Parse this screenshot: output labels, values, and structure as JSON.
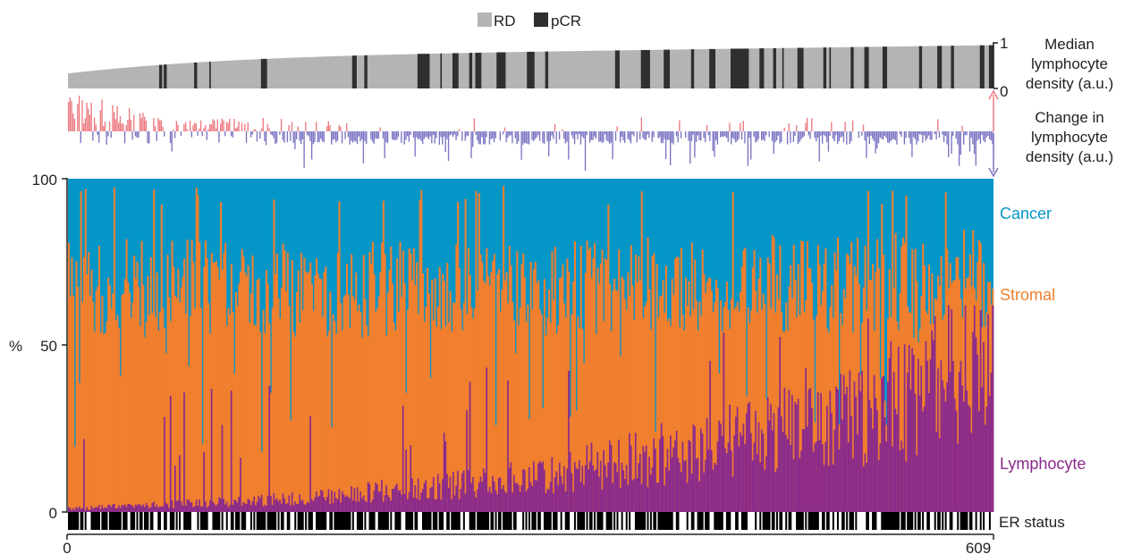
{
  "chart_data": {
    "type": "bar",
    "n_samples": 609,
    "x_ticks": [
      0,
      609
    ],
    "colors": {
      "RD": "#b4b4b4",
      "pCR": "#2f2f2f",
      "increase": "#ec7a80",
      "decrease": "#7a74c2",
      "cancer": "#0596c8",
      "stromal": "#f07f2e",
      "lymphocyte": "#8a2a8c",
      "er_positive": "#000000",
      "er_negative": "#ffffff"
    },
    "response_legend": [
      {
        "label": "RD",
        "color": "#b4b4b4"
      },
      {
        "label": "pCR",
        "color": "#2f2f2f"
      }
    ],
    "median_density": {
      "ylabel": "Median lymphocyte density (a.u.)",
      "ylabel_lines": [
        "Median",
        "lymphocyte",
        "density (a.u.)"
      ],
      "ylim": [
        0,
        1
      ],
      "y_tick_labels": [
        "1",
        "0"
      ],
      "start_value": 0.33,
      "end_value": 0.95,
      "pcr_runs": [
        [
          60,
          62
        ],
        [
          63,
          65
        ],
        [
          83,
          85
        ],
        [
          93,
          94
        ],
        [
          127,
          131
        ],
        [
          187,
          190
        ],
        [
          195,
          197
        ],
        [
          230,
          238
        ],
        [
          245,
          246
        ],
        [
          253,
          257
        ],
        [
          264,
          266
        ],
        [
          268,
          272
        ],
        [
          282,
          288
        ],
        [
          302,
          307
        ],
        [
          314,
          316
        ],
        [
          360,
          363
        ],
        [
          377,
          383
        ],
        [
          392,
          396
        ],
        [
          410,
          412
        ],
        [
          422,
          426
        ],
        [
          436,
          448
        ],
        [
          455,
          458
        ],
        [
          464,
          466
        ],
        [
          470,
          471
        ],
        [
          480,
          484
        ],
        [
          497,
          499
        ],
        [
          501,
          502
        ],
        [
          515,
          517
        ],
        [
          524,
          527
        ],
        [
          536,
          539
        ],
        [
          560,
          562
        ],
        [
          572,
          575
        ],
        [
          581,
          583
        ],
        [
          600,
          603
        ],
        [
          606,
          609
        ]
      ]
    },
    "density_change": {
      "ylabel": "Change in lymphocyte density (a.u.)",
      "ylabel_lines": [
        "Change in",
        "lymphocyte",
        "density (a.u.)"
      ],
      "note": "change values per sample are not printed; bars drawn approximately"
    },
    "composition": {
      "ylabel": "%",
      "ylim": [
        0,
        100
      ],
      "y_ticks": [
        0,
        50,
        100
      ],
      "series": [
        {
          "name": "Cancer",
          "label": "Cancer"
        },
        {
          "name": "Stromal",
          "label": "Stromal"
        },
        {
          "name": "Lymphocyte",
          "label": "Lymphocyte"
        }
      ],
      "trend": {
        "lymphocyte_pct": {
          "x": [
            0,
            150,
            300,
            450,
            550,
            609
          ],
          "y": [
            1,
            4,
            10,
            22,
            33,
            50
          ]
        },
        "cancer_pct": {
          "x": [
            0,
            150,
            300,
            450,
            609
          ],
          "y": [
            33,
            33,
            33,
            32,
            30
          ]
        }
      }
    },
    "er_status": {
      "label": "ER status"
    }
  }
}
